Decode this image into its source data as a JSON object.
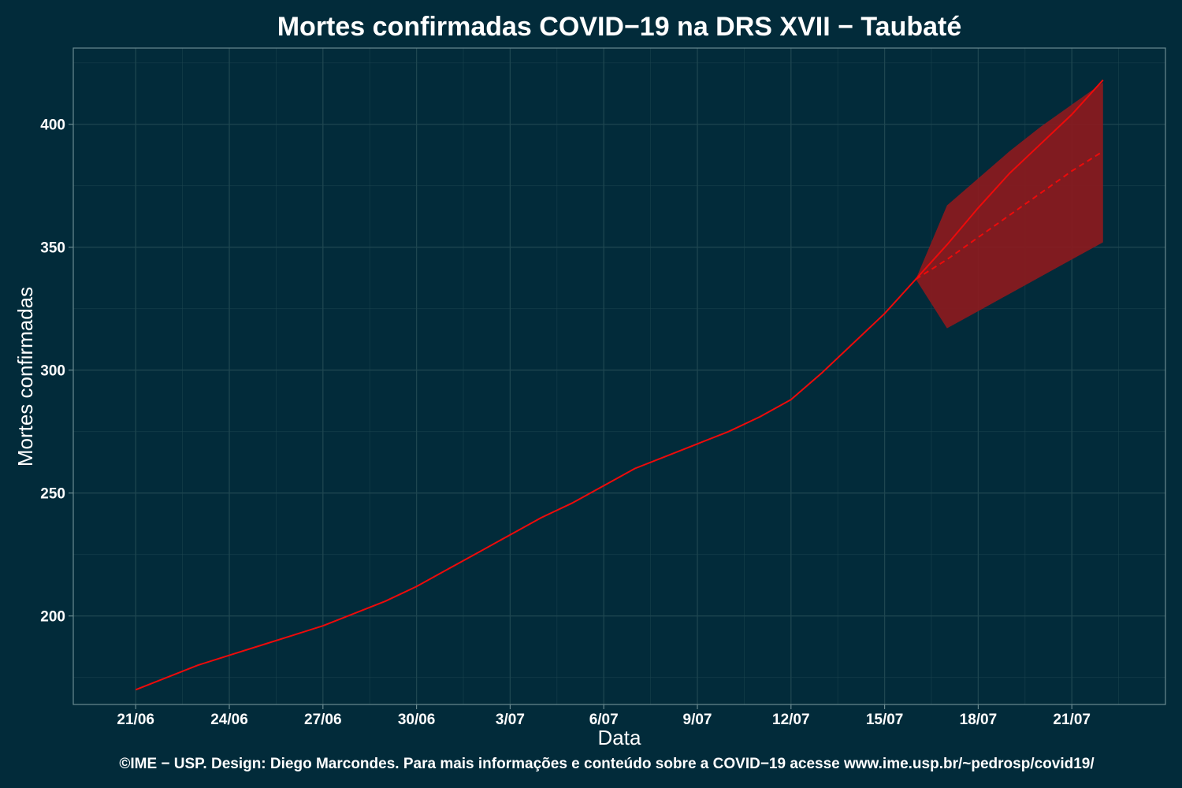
{
  "chart_data": {
    "type": "line",
    "title": "Mortes confirmadas COVID−19 na DRS XVII − Taubaté",
    "xlabel": "Data",
    "ylabel": "Mortes confirmadas",
    "caption": "©IME − USP. Design: Diego Marcondes. Para mais informações e conteúdo sobre a COVID−19 acesse www.ime.usp.br/~pedrosp/covid19/",
    "x_tick_labels": [
      "21/06",
      "24/06",
      "27/06",
      "30/06",
      "3/07",
      "6/07",
      "9/07",
      "12/07",
      "15/07",
      "18/07",
      "21/07"
    ],
    "x_tick_dates": [
      "2020-06-21",
      "2020-06-24",
      "2020-06-27",
      "2020-06-30",
      "2020-07-03",
      "2020-07-06",
      "2020-07-09",
      "2020-07-12",
      "2020-07-15",
      "2020-07-18",
      "2020-07-21"
    ],
    "y_ticks": [
      200,
      250,
      300,
      350,
      400
    ],
    "xlim": [
      "2020-06-19",
      "2020-07-24"
    ],
    "ylim": [
      164,
      431
    ],
    "grid": true,
    "colors": {
      "background": "#022b3a",
      "line": "#ee0a0a",
      "band": "#8b1a1e",
      "grid": "#1e4650",
      "axis": "#6a8a90",
      "text": "#ffffff"
    },
    "series": [
      {
        "style": "solid",
        "x": [
          "2020-06-21",
          "2020-06-22",
          "2020-06-23",
          "2020-06-24",
          "2020-06-25",
          "2020-06-26",
          "2020-06-27",
          "2020-06-28",
          "2020-06-29",
          "2020-06-30",
          "2020-07-01",
          "2020-07-02",
          "2020-07-03",
          "2020-07-04",
          "2020-07-05",
          "2020-07-06",
          "2020-07-07",
          "2020-07-08",
          "2020-07-09",
          "2020-07-10",
          "2020-07-11",
          "2020-07-12",
          "2020-07-13",
          "2020-07-14",
          "2020-07-15",
          "2020-07-16",
          "2020-07-17",
          "2020-07-18",
          "2020-07-19",
          "2020-07-20",
          "2020-07-21",
          "2020-07-22"
        ],
        "values": [
          170,
          175,
          180,
          184,
          188,
          192,
          196,
          201,
          206,
          212,
          219,
          226,
          233,
          240,
          246,
          253,
          260,
          265,
          270,
          275,
          281,
          288,
          299,
          311,
          323,
          337,
          351,
          366,
          380,
          392,
          404,
          418
        ]
      },
      {
        "style": "dashed",
        "x": [
          "2020-07-16",
          "2020-07-17",
          "2020-07-18",
          "2020-07-19",
          "2020-07-20",
          "2020-07-21",
          "2020-07-22"
        ],
        "values": [
          337,
          345,
          354,
          363,
          372,
          381,
          389
        ]
      }
    ],
    "band": {
      "x": [
        "2020-07-16",
        "2020-07-17",
        "2020-07-18",
        "2020-07-19",
        "2020-07-20",
        "2020-07-21",
        "2020-07-22"
      ],
      "upper": [
        337,
        367,
        378,
        389,
        399,
        408,
        417
      ],
      "lower": [
        337,
        317,
        324,
        331,
        338,
        345,
        352
      ]
    }
  }
}
